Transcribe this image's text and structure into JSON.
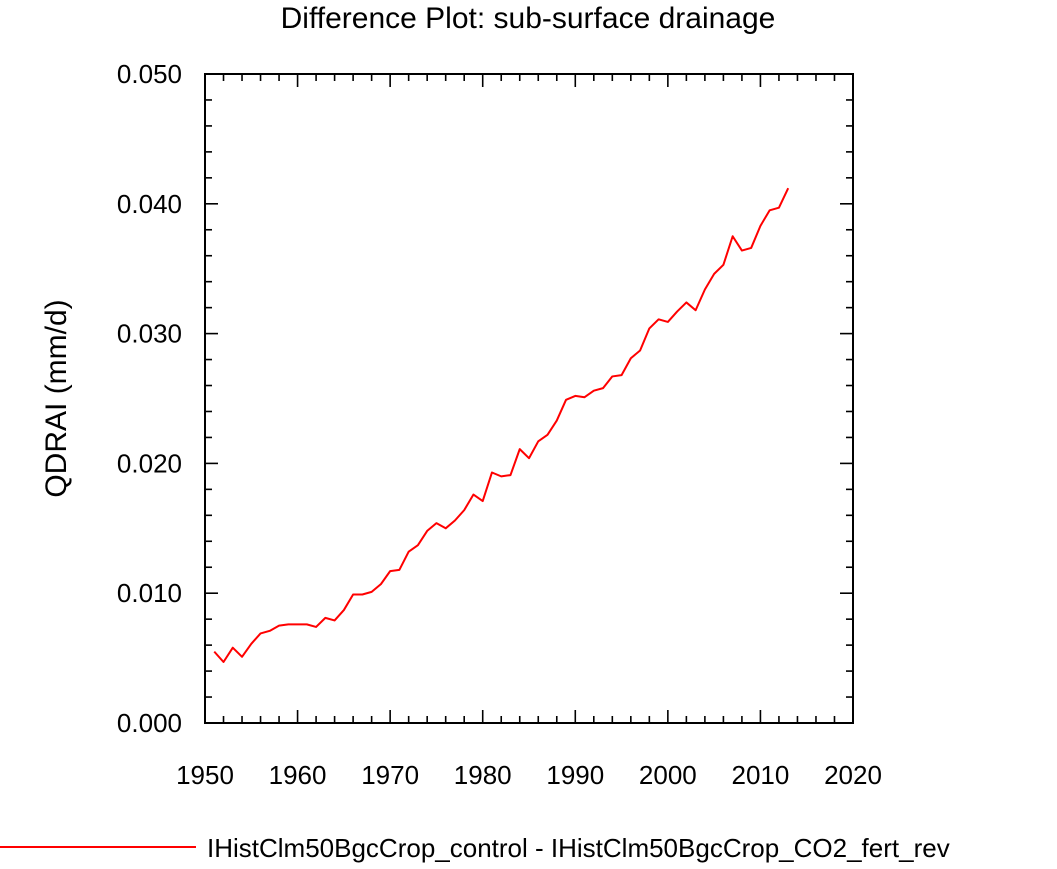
{
  "chart_data": {
    "type": "line",
    "title": "Difference Plot: sub-surface drainage",
    "xlabel": "",
    "ylabel": "QDRAI  (mm/d)",
    "xlim": [
      1950,
      2020
    ],
    "ylim": [
      0.0,
      0.05
    ],
    "x_ticks": [
      "1950",
      "1960",
      "1970",
      "1980",
      "1990",
      "2000",
      "2010",
      "2020"
    ],
    "y_ticks": [
      "0.000",
      "0.010",
      "0.020",
      "0.030",
      "0.040",
      "0.050"
    ],
    "grid": false,
    "legend_position": "bottom",
    "series": [
      {
        "name": "IHistClm50BgcCrop_control - IHistClm50BgcCrop_CO2_fert_rev",
        "color": "#ff0000",
        "x": [
          1951,
          1952,
          1953,
          1954,
          1955,
          1956,
          1957,
          1958,
          1959,
          1960,
          1961,
          1962,
          1963,
          1964,
          1965,
          1966,
          1967,
          1968,
          1969,
          1970,
          1971,
          1972,
          1973,
          1974,
          1975,
          1976,
          1977,
          1978,
          1979,
          1980,
          1981,
          1982,
          1983,
          1984,
          1985,
          1986,
          1987,
          1988,
          1989,
          1990,
          1991,
          1992,
          1993,
          1994,
          1995,
          1996,
          1997,
          1998,
          1999,
          2000,
          2001,
          2002,
          2003,
          2004,
          2005,
          2006,
          2007,
          2008,
          2009,
          2010,
          2011,
          2012,
          2013
        ],
        "y": [
          0.0055,
          0.0047,
          0.0058,
          0.0051,
          0.0061,
          0.0069,
          0.0071,
          0.0075,
          0.0076,
          0.0076,
          0.0076,
          0.0074,
          0.0081,
          0.0079,
          0.0087,
          0.0099,
          0.0099,
          0.0101,
          0.0107,
          0.0117,
          0.0118,
          0.0132,
          0.0137,
          0.0148,
          0.0154,
          0.015,
          0.0156,
          0.0164,
          0.0176,
          0.0171,
          0.0193,
          0.019,
          0.0191,
          0.0211,
          0.0204,
          0.0217,
          0.0222,
          0.0233,
          0.0249,
          0.0252,
          0.0251,
          0.0256,
          0.0258,
          0.0267,
          0.0268,
          0.0281,
          0.0287,
          0.0304,
          0.0311,
          0.0309,
          0.0317,
          0.0324,
          0.0318,
          0.0334,
          0.0346,
          0.0353,
          0.0375,
          0.0364,
          0.0366,
          0.0383,
          0.0395,
          0.0397,
          0.0412
        ]
      }
    ]
  }
}
